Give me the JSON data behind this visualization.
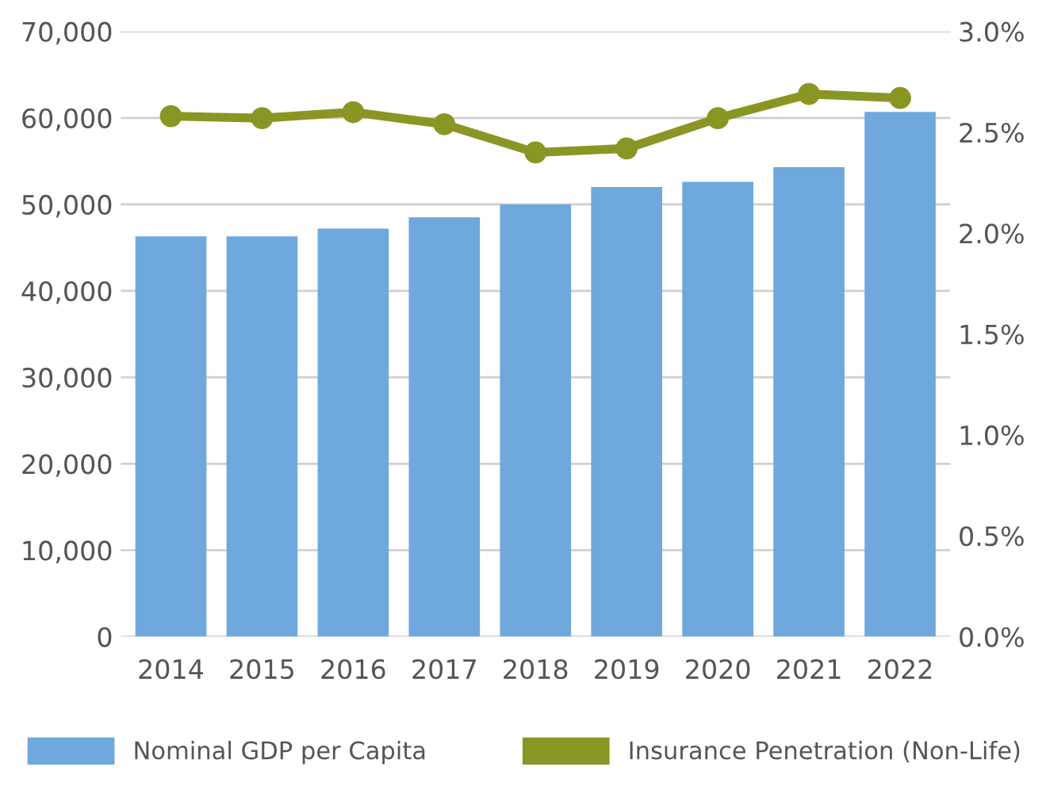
{
  "chart_data": {
    "type": "bar",
    "categories": [
      "2014",
      "2015",
      "2016",
      "2017",
      "2018",
      "2019",
      "2020",
      "2021",
      "2022"
    ],
    "series": [
      {
        "name": "Nominal GDP per Capita",
        "color": "#6fa8dc",
        "values": [
          46300,
          46300,
          47200,
          48500,
          50000,
          52000,
          52600,
          54300,
          60700
        ]
      },
      {
        "name": "Insurance Penetration (Non-Life)",
        "type": "line",
        "axis": "y2",
        "color": "#8a9624",
        "values": [
          2.58,
          2.57,
          2.6,
          2.54,
          2.4,
          2.42,
          2.57,
          2.69,
          2.67
        ]
      }
    ],
    "ylim": [
      0,
      70000
    ],
    "yticks": [
      {
        "value": 0,
        "label": "0"
      },
      {
        "value": 10000,
        "label": "10,000"
      },
      {
        "value": 20000,
        "label": "20,000"
      },
      {
        "value": 30000,
        "label": "30,000"
      },
      {
        "value": 40000,
        "label": "40,000"
      },
      {
        "value": 50000,
        "label": "50,000"
      },
      {
        "value": 60000,
        "label": "60,000"
      },
      {
        "value": 70000,
        "label": "70,000"
      }
    ],
    "y2lim": [
      0,
      3.0
    ],
    "y2ticks": [
      {
        "value": 0,
        "label": "0.0%"
      },
      {
        "value": 0.5,
        "label": "0.5%"
      },
      {
        "value": 1.0,
        "label": "1.0%"
      },
      {
        "value": 1.5,
        "label": "1.5%"
      },
      {
        "value": 2.0,
        "label": "2.0%"
      },
      {
        "value": 2.5,
        "label": "2.5%"
      },
      {
        "value": 3.0,
        "label": "3.0%"
      }
    ],
    "grid": "y",
    "legend": "bottom",
    "marker": "circle",
    "line_style": "solid"
  }
}
